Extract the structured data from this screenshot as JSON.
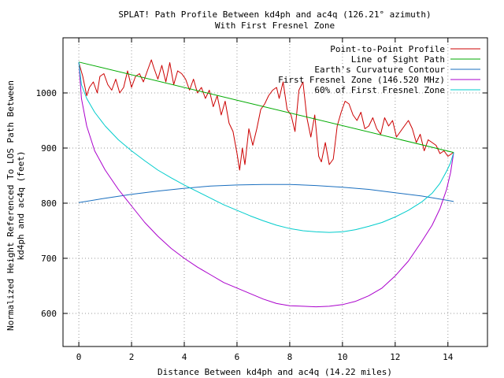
{
  "chart_data": {
    "type": "line",
    "title": "SPLAT! Path Profile Between kd4ph and ac4q (126.21° azimuth)",
    "subtitle": "With First Fresnel Zone",
    "xlabel": "Distance Between kd4ph and ac4q (14.22 miles)",
    "ylabel_line1": "Normalized Height Referenced To LOS Path Between",
    "ylabel_line2": "kd4ph and ac4q (feet)",
    "xlim": [
      -0.6,
      15.5
    ],
    "ylim": [
      540,
      1100
    ],
    "xticks": [
      0,
      2,
      4,
      6,
      8,
      10,
      12,
      14
    ],
    "xtick_labels": [
      "0",
      "2",
      "4",
      "6",
      "8",
      "10",
      "12",
      "14"
    ],
    "yticks": [
      600,
      700,
      800,
      900,
      1000
    ],
    "ytick_labels": [
      "600",
      "700",
      "800",
      "900",
      "1000"
    ],
    "grid": true,
    "legend_position": "top-right",
    "series": [
      {
        "name": "Point-to-Point Profile",
        "color": "#cc0000",
        "x": [
          0.0,
          0.15,
          0.3,
          0.4,
          0.55,
          0.7,
          0.8,
          0.95,
          1.1,
          1.25,
          1.4,
          1.55,
          1.7,
          1.85,
          2.0,
          2.15,
          2.3,
          2.45,
          2.6,
          2.75,
          2.85,
          3.0,
          3.15,
          3.3,
          3.45,
          3.6,
          3.75,
          3.9,
          4.05,
          4.2,
          4.35,
          4.5,
          4.65,
          4.8,
          4.95,
          5.1,
          5.25,
          5.4,
          5.55,
          5.7,
          5.85,
          6.0,
          6.1,
          6.2,
          6.3,
          6.45,
          6.6,
          6.75,
          6.9,
          7.05,
          7.2,
          7.35,
          7.5,
          7.6,
          7.75,
          7.9,
          8.05,
          8.2,
          8.35,
          8.5,
          8.65,
          8.8,
          8.95,
          9.1,
          9.2,
          9.35,
          9.5,
          9.65,
          9.8,
          9.95,
          10.1,
          10.25,
          10.4,
          10.55,
          10.7,
          10.85,
          11.0,
          11.15,
          11.3,
          11.45,
          11.6,
          11.75,
          11.9,
          12.05,
          12.2,
          12.35,
          12.5,
          12.65,
          12.8,
          12.95,
          13.1,
          13.25,
          13.4,
          13.55,
          13.7,
          13.85,
          14.0,
          14.15,
          14.22
        ],
        "y": [
          1055,
          1030,
          995,
          1010,
          1020,
          1000,
          1030,
          1035,
          1015,
          1005,
          1025,
          1000,
          1010,
          1040,
          1010,
          1030,
          1035,
          1020,
          1040,
          1060,
          1045,
          1025,
          1050,
          1020,
          1055,
          1015,
          1040,
          1035,
          1025,
          1005,
          1025,
          1000,
          1010,
          990,
          1005,
          975,
          995,
          960,
          985,
          945,
          930,
          890,
          860,
          900,
          870,
          935,
          905,
          935,
          970,
          980,
          995,
          1005,
          1010,
          990,
          1020,
          970,
          960,
          930,
          1005,
          1020,
          955,
          920,
          960,
          885,
          875,
          910,
          870,
          880,
          940,
          965,
          985,
          980,
          960,
          950,
          965,
          935,
          940,
          955,
          935,
          925,
          955,
          940,
          950,
          920,
          930,
          940,
          950,
          935,
          910,
          925,
          895,
          915,
          910,
          905,
          890,
          895,
          885,
          890,
          892
        ],
        "data_labels": []
      },
      {
        "name": "Line of Sight Path",
        "color": "#00aa00",
        "x": [
          0,
          14.22
        ],
        "y": [
          1056,
          892
        ],
        "data_labels": []
      },
      {
        "name": "Earth's Curvature Contour",
        "color": "#1a6fbf",
        "x": [
          0,
          1,
          2,
          3,
          4,
          5,
          6,
          7,
          8,
          9,
          10,
          11,
          12,
          13,
          14,
          14.22
        ],
        "y": [
          801,
          809,
          816,
          822,
          827,
          831,
          833,
          834,
          834,
          832,
          829,
          825,
          819,
          813,
          805,
          803
        ],
        "data_labels": []
      },
      {
        "name": "First Fresnel Zone (146.520 MHz)",
        "color": "#aa00cc",
        "x": [
          0,
          0.1,
          0.3,
          0.6,
          1.0,
          1.5,
          2.0,
          2.5,
          3.0,
          3.5,
          4.0,
          4.5,
          5.0,
          5.5,
          6.0,
          6.5,
          7.0,
          7.5,
          8.0,
          8.5,
          9.0,
          9.5,
          10.0,
          10.5,
          11.0,
          11.5,
          12.0,
          12.5,
          13.0,
          13.4,
          13.7,
          13.95,
          14.1,
          14.22
        ],
        "y": [
          1056,
          990,
          940,
          895,
          860,
          825,
          795,
          765,
          740,
          718,
          700,
          684,
          670,
          656,
          646,
          636,
          626,
          618,
          614,
          613,
          612,
          613,
          616,
          622,
          632,
          646,
          668,
          695,
          730,
          760,
          790,
          825,
          855,
          892
        ],
        "data_labels": []
      },
      {
        "name": "60% of First Fresnel Zone",
        "color": "#00cccc",
        "x": [
          0,
          0.1,
          0.3,
          0.6,
          1.0,
          1.5,
          2.0,
          2.5,
          3.0,
          3.5,
          4.0,
          4.5,
          5.0,
          5.5,
          6.0,
          6.5,
          7.0,
          7.5,
          8.0,
          8.5,
          9.0,
          9.5,
          10.0,
          10.5,
          11.0,
          11.5,
          12.0,
          12.5,
          13.0,
          13.4,
          13.7,
          13.95,
          14.1,
          14.22
        ],
        "y": [
          1056,
          1015,
          990,
          965,
          940,
          915,
          895,
          877,
          860,
          846,
          833,
          821,
          809,
          797,
          787,
          777,
          768,
          760,
          754,
          750,
          748,
          747,
          748,
          752,
          758,
          765,
          775,
          787,
          802,
          818,
          836,
          858,
          873,
          892
        ],
        "data_labels": []
      }
    ]
  }
}
